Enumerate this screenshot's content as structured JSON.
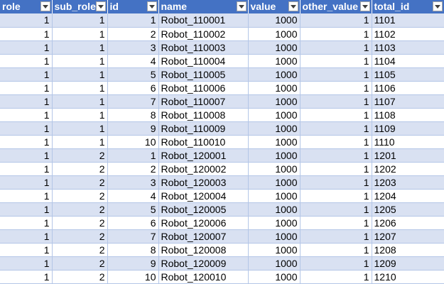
{
  "sheet": {
    "columns": [
      "role",
      "sub_role",
      "id",
      "name",
      "value",
      "other_value",
      "total_id"
    ],
    "rows": [
      [
        "1",
        "1",
        "1",
        "Robot_110001",
        "1000",
        "1",
        "1101"
      ],
      [
        "1",
        "1",
        "2",
        "Robot_110002",
        "1000",
        "1",
        "1102"
      ],
      [
        "1",
        "1",
        "3",
        "Robot_110003",
        "1000",
        "1",
        "1103"
      ],
      [
        "1",
        "1",
        "4",
        "Robot_110004",
        "1000",
        "1",
        "1104"
      ],
      [
        "1",
        "1",
        "5",
        "Robot_110005",
        "1000",
        "1",
        "1105"
      ],
      [
        "1",
        "1",
        "6",
        "Robot_110006",
        "1000",
        "1",
        "1106"
      ],
      [
        "1",
        "1",
        "7",
        "Robot_110007",
        "1000",
        "1",
        "1107"
      ],
      [
        "1",
        "1",
        "8",
        "Robot_110008",
        "1000",
        "1",
        "1108"
      ],
      [
        "1",
        "1",
        "9",
        "Robot_110009",
        "1000",
        "1",
        "1109"
      ],
      [
        "1",
        "1",
        "10",
        "Robot_110010",
        "1000",
        "1",
        "1110"
      ],
      [
        "1",
        "2",
        "1",
        "Robot_120001",
        "1000",
        "1",
        "1201"
      ],
      [
        "1",
        "2",
        "2",
        "Robot_120002",
        "1000",
        "1",
        "1202"
      ],
      [
        "1",
        "2",
        "3",
        "Robot_120003",
        "1000",
        "1",
        "1203"
      ],
      [
        "1",
        "2",
        "4",
        "Robot_120004",
        "1000",
        "1",
        "1204"
      ],
      [
        "1",
        "2",
        "5",
        "Robot_120005",
        "1000",
        "1",
        "1205"
      ],
      [
        "1",
        "2",
        "6",
        "Robot_120006",
        "1000",
        "1",
        "1206"
      ],
      [
        "1",
        "2",
        "7",
        "Robot_120007",
        "1000",
        "1",
        "1207"
      ],
      [
        "1",
        "2",
        "8",
        "Robot_120008",
        "1000",
        "1",
        "1208"
      ],
      [
        "1",
        "2",
        "9",
        "Robot_120009",
        "1000",
        "1",
        "1209"
      ],
      [
        "1",
        "2",
        "10",
        "Robot_120010",
        "1000",
        "1",
        "1210"
      ]
    ],
    "icons": {
      "filter": "filter-dropdown-icon"
    },
    "colors": {
      "header_bg": "#4472c4",
      "header_text": "#ffffff",
      "band_row": "#d9e1f2",
      "plain_row": "#ffffff",
      "grid_line": "#b4c6e7"
    }
  }
}
